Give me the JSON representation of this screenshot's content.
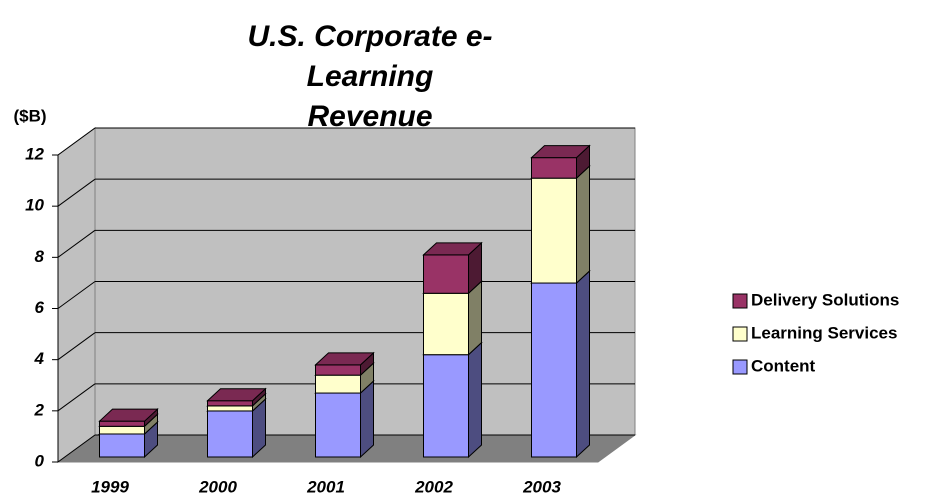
{
  "chart_data": {
    "type": "bar3d_stacked",
    "title": [
      "U.S. Corporate e-",
      "Learning",
      "Revenue"
    ],
    "y_label": "($B)",
    "categories": [
      "1999",
      "2000",
      "2001",
      "2002",
      "2003"
    ],
    "series": [
      {
        "name": "Content",
        "color": "#9999ff",
        "values": [
          0.9,
          1.8,
          2.5,
          4.0,
          6.8
        ]
      },
      {
        "name": "Learning Services",
        "color": "#ffffcc",
        "values": [
          0.3,
          0.2,
          0.7,
          2.4,
          4.1
        ]
      },
      {
        "name": "Delivery Solutions",
        "color": "#993366",
        "values": [
          0.2,
          0.2,
          0.4,
          1.5,
          0.8
        ]
      }
    ],
    "ylim": [
      0,
      12
    ],
    "yticks": [
      0,
      2,
      4,
      6,
      8,
      10,
      12
    ],
    "grid": true,
    "legend": "right"
  }
}
